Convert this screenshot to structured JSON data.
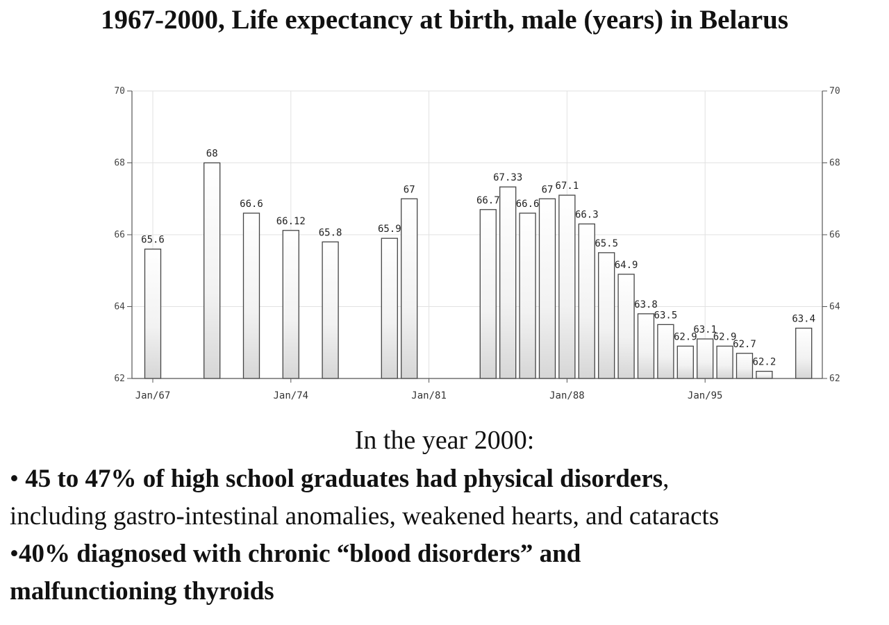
{
  "title": "1967-2000, Life expectancy at birth,  male (years) in Belarus",
  "chart_data": {
    "type": "bar",
    "x": [
      "1967",
      "1970",
      "1972",
      "1974",
      "1976",
      "1979",
      "1980",
      "1984",
      "1985",
      "1986",
      "1987",
      "1988",
      "1989",
      "1990",
      "1991",
      "1992",
      "1993",
      "1994",
      "1995",
      "1996",
      "1997",
      "1998",
      "1999",
      "2000"
    ],
    "values": [
      65.6,
      68,
      66.6,
      66.12,
      65.8,
      65.9,
      67,
      66.7,
      67.33,
      66.6,
      67,
      67.1,
      66.3,
      65.5,
      64.9,
      63.8,
      63.5,
      62.9,
      63.1,
      62.9,
      62.7,
      62.2,
      null,
      63.4
    ],
    "data_labels": [
      "65.6",
      "68",
      "66.6",
      "66.12",
      "65.8",
      "65.9",
      "67",
      "66.7",
      "67.33",
      "66.6",
      "67",
      "67.1",
      "66.3",
      "65.5",
      "64.9",
      "63.8",
      "63.5",
      "62.9",
      "63.1",
      "62.9",
      "62.7",
      "62.2",
      "",
      "63.4"
    ],
    "x_tick_labels": [
      "Jan/67",
      "Jan/74",
      "Jan/81",
      "Jan/88",
      "Jan/95"
    ],
    "y_ticks": [
      "62",
      "64",
      "66",
      "68",
      "70"
    ],
    "ylim": [
      62,
      70
    ],
    "xlabel": "",
    "ylabel": "",
    "grid": true,
    "y_axis_both_sides": true
  },
  "subtitle": "In the year 2000:",
  "bullets": [
    {
      "prefix": "• ",
      "bold": "45 to 47% of high school graduates had physical disorders",
      "rest": ","
    },
    {
      "prefix": "",
      "bold": "",
      "rest": "including gastro-intestinal anomalies, weakened hearts, and cataracts"
    },
    {
      "prefix": "•",
      "bold": "40%  diagnosed with chronic “blood disorders” and",
      "rest": ""
    },
    {
      "prefix": "",
      "bold": "malfunctioning thyroids",
      "rest": ""
    }
  ]
}
